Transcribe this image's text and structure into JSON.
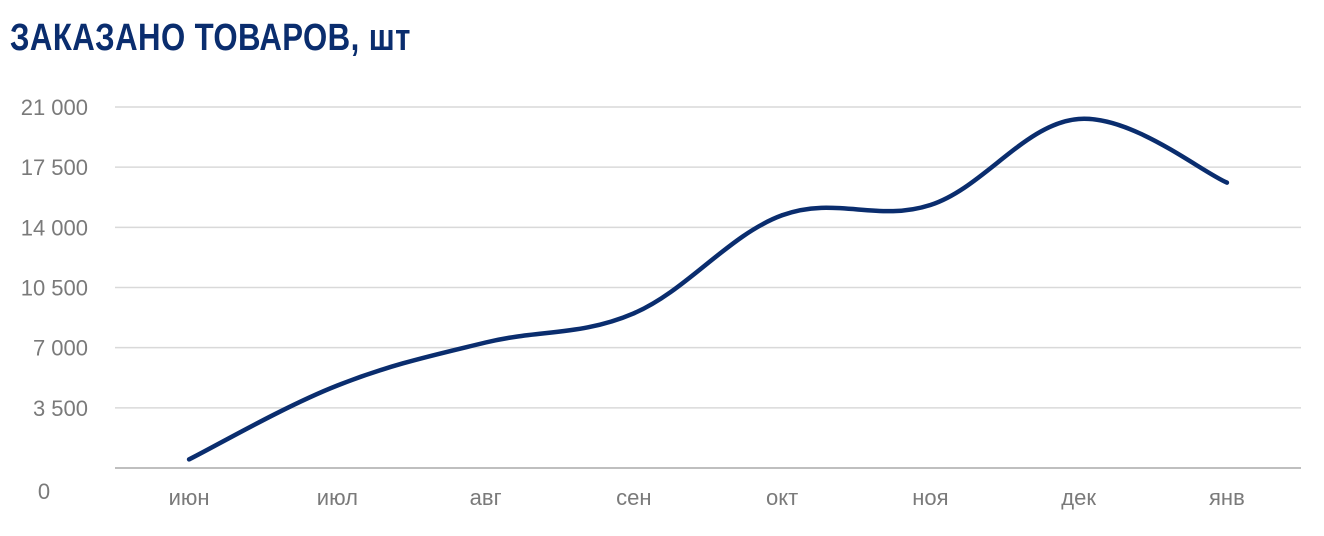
{
  "title": "ЗАКАЗАНО ТОВАРОВ, шт",
  "colors": {
    "title": "#0a2d6e",
    "line": "#0a2d6e",
    "grid": "#d9d9d9",
    "axis": "#bfbfbf",
    "ticks": "#7a7a7a"
  },
  "chart_data": {
    "type": "line",
    "title": "ЗАКАЗАНО ТОВАРОВ, шт",
    "categories": [
      "июн",
      "июл",
      "авг",
      "сен",
      "окт",
      "ноя",
      "дек",
      "янв"
    ],
    "series": [
      {
        "values": [
          500,
          4800,
          7300,
          9000,
          14700,
          15300,
          20300,
          16600
        ]
      }
    ],
    "yticks": [
      {
        "value": 0,
        "label": "0"
      },
      {
        "value": 3500,
        "label": "3 500"
      },
      {
        "value": 7000,
        "label": "7 000"
      },
      {
        "value": 10500,
        "label": "10 500"
      },
      {
        "value": 14000,
        "label": "14 000"
      },
      {
        "value": 17500,
        "label": "17 500"
      },
      {
        "value": 21000,
        "label": "21 000"
      }
    ],
    "ylim": [
      0,
      21000
    ],
    "grid": true,
    "legend": "none",
    "smooth": true
  }
}
